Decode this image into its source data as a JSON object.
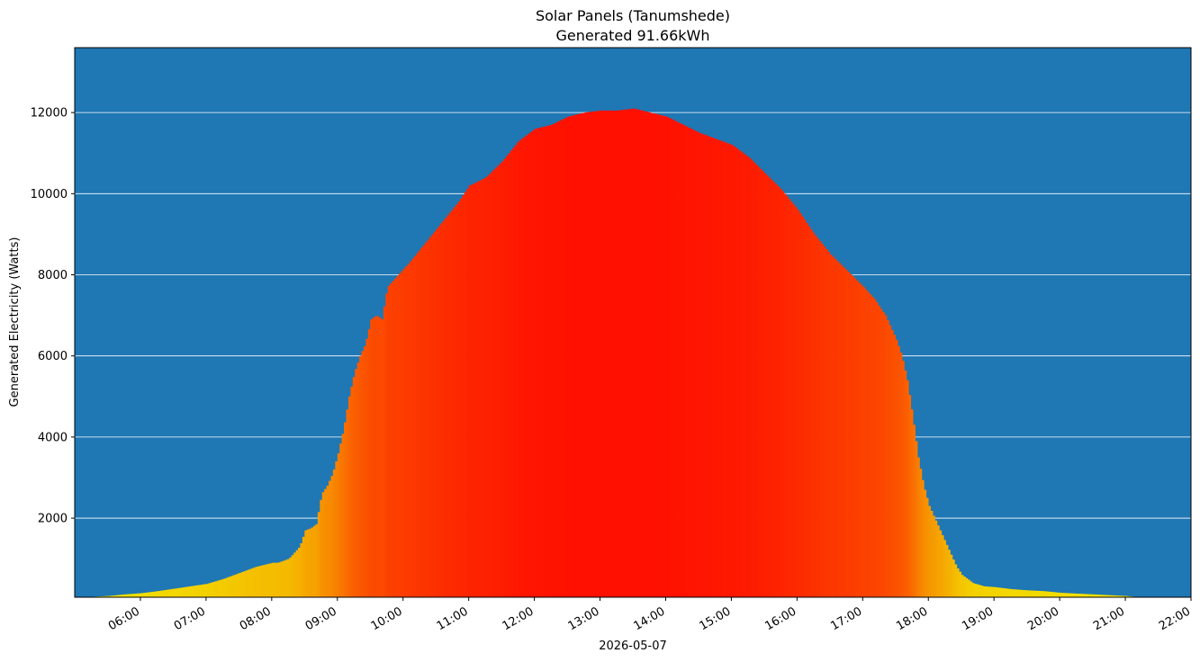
{
  "chart_data": {
    "type": "bar",
    "title": "Solar Panels (Tanumshede)",
    "subtitle": "Generated 91.66kWh",
    "xlabel": "2026-05-07",
    "ylabel": "Generated Electricity (Watts)",
    "background_color": "#1f77b4",
    "grid": "horizontal",
    "color_scale": {
      "low": "#f2f200",
      "high": "#ff1000"
    },
    "xlim": [
      "05:00",
      "22:00"
    ],
    "ylim": [
      50,
      13600
    ],
    "x_ticks": [
      "06:00",
      "07:00",
      "08:00",
      "09:00",
      "10:00",
      "11:00",
      "12:00",
      "13:00",
      "14:00",
      "15:00",
      "16:00",
      "17:00",
      "18:00",
      "19:00",
      "20:00",
      "21:00",
      "22:00"
    ],
    "y_ticks": [
      2000,
      4000,
      6000,
      8000,
      10000,
      12000
    ],
    "series": [
      {
        "x": [
          "05:00",
          "05:15",
          "05:30",
          "05:45",
          "06:00",
          "06:15",
          "06:30",
          "06:45",
          "07:00",
          "07:15",
          "07:30",
          "07:45",
          "08:00",
          "08:05",
          "08:15",
          "08:25",
          "08:30",
          "08:35",
          "08:40",
          "08:45",
          "08:50",
          "08:55",
          "09:00",
          "09:05",
          "09:10",
          "09:15",
          "09:20",
          "09:25",
          "09:30",
          "09:35",
          "09:40",
          "09:45",
          "09:55",
          "10:05",
          "10:20",
          "10:35",
          "10:50",
          "11:00",
          "11:15",
          "11:30",
          "11:45",
          "12:00",
          "12:15",
          "12:30",
          "12:45",
          "13:00",
          "13:15",
          "13:30",
          "13:45",
          "14:00",
          "14:15",
          "14:30",
          "14:45",
          "15:00",
          "15:15",
          "15:30",
          "15:45",
          "16:00",
          "16:15",
          "16:30",
          "16:45",
          "17:00",
          "17:10",
          "17:20",
          "17:30",
          "17:35",
          "17:40",
          "17:45",
          "17:50",
          "17:55",
          "18:00",
          "18:05",
          "18:10",
          "18:15",
          "18:20",
          "18:25",
          "18:30",
          "18:40",
          "18:50",
          "19:00",
          "19:15",
          "19:30",
          "19:45",
          "20:00",
          "20:15",
          "20:30",
          "20:45",
          "21:00",
          "21:15"
        ],
        "values": [
          50,
          60,
          80,
          120,
          150,
          200,
          260,
          320,
          380,
          500,
          650,
          800,
          900,
          900,
          1000,
          1300,
          1700,
          1750,
          1850,
          2600,
          2800,
          3100,
          3600,
          4200,
          5000,
          5600,
          6000,
          6300,
          6900,
          7000,
          6900,
          7700,
          8000,
          8300,
          8800,
          9300,
          9800,
          10200,
          10400,
          10800,
          11300,
          11600,
          11700,
          11900,
          12000,
          12050,
          12050,
          12100,
          12000,
          11900,
          11700,
          11500,
          11350,
          11200,
          10900,
          10500,
          10100,
          9600,
          9000,
          8500,
          8100,
          7700,
          7400,
          7000,
          6400,
          6000,
          5400,
          4500,
          3500,
          2800,
          2300,
          2000,
          1700,
          1400,
          1100,
          800,
          600,
          400,
          320,
          300,
          250,
          220,
          200,
          160,
          140,
          120,
          100,
          80,
          40
        ]
      }
    ]
  }
}
